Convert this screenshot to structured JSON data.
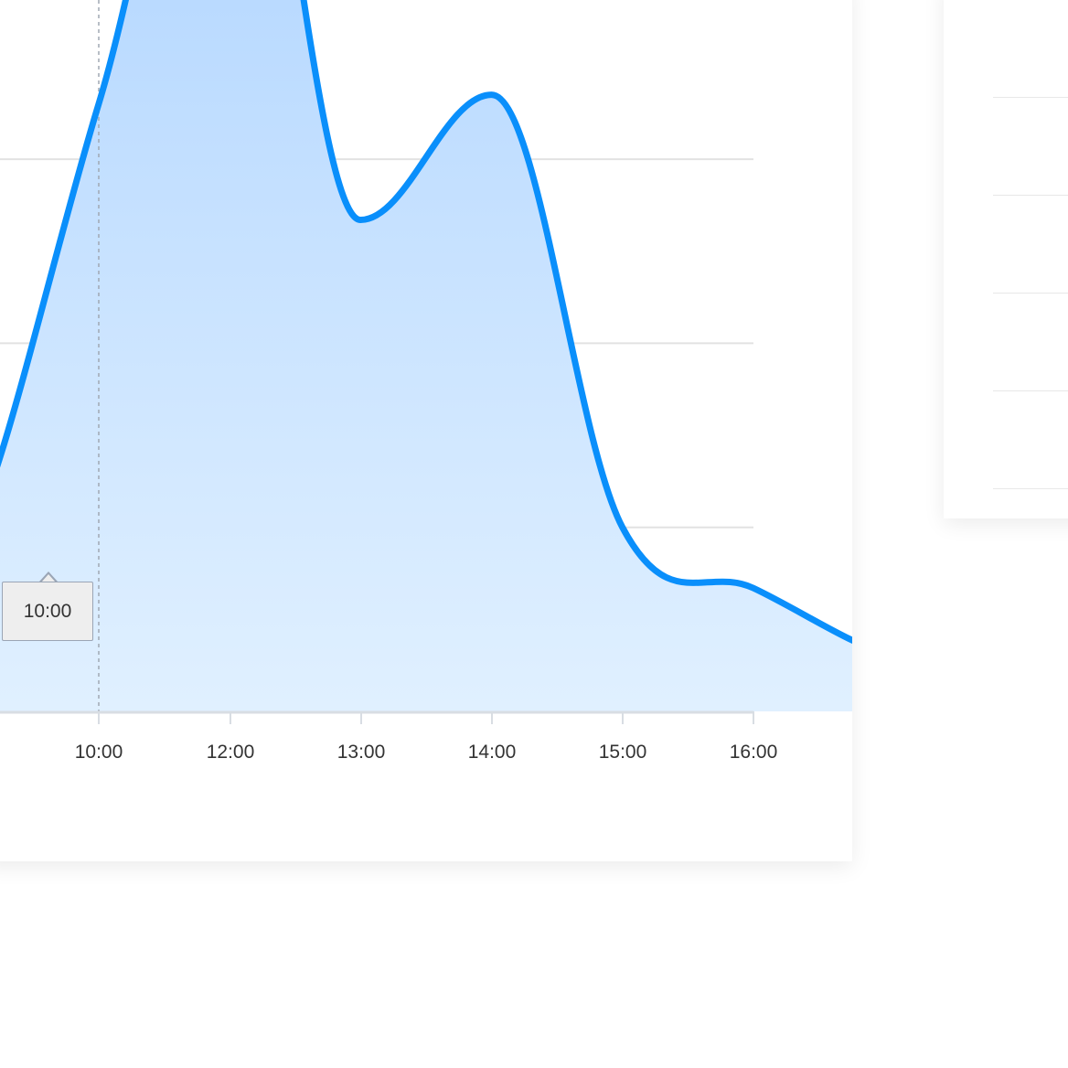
{
  "chart_data": {
    "type": "area",
    "title": "",
    "xlabel": "",
    "ylabel": "",
    "x_tick_labels": [
      "10:00",
      "12:00",
      "13:00",
      "14:00",
      "15:00",
      "16:00"
    ],
    "x": [
      2,
      3,
      4,
      5,
      6,
      7,
      8
    ],
    "values": [
      3.3,
      5.67,
      2.67,
      3.35,
      1.0,
      0.67,
      0.33
    ],
    "ylim": [
      0,
      3.87
    ],
    "grid": true,
    "colors": {
      "line": "#0a8ffb",
      "fill_top": "#a8d0ff",
      "fill_bottom": "#e0f0ff",
      "grid": "#e2e2e2",
      "axis": "#d8dde3",
      "crosshair": "#a0a8b4"
    },
    "tooltip": {
      "label": "10:00",
      "highlight_index": 1
    }
  },
  "side_panel": {
    "row_count": 5
  }
}
